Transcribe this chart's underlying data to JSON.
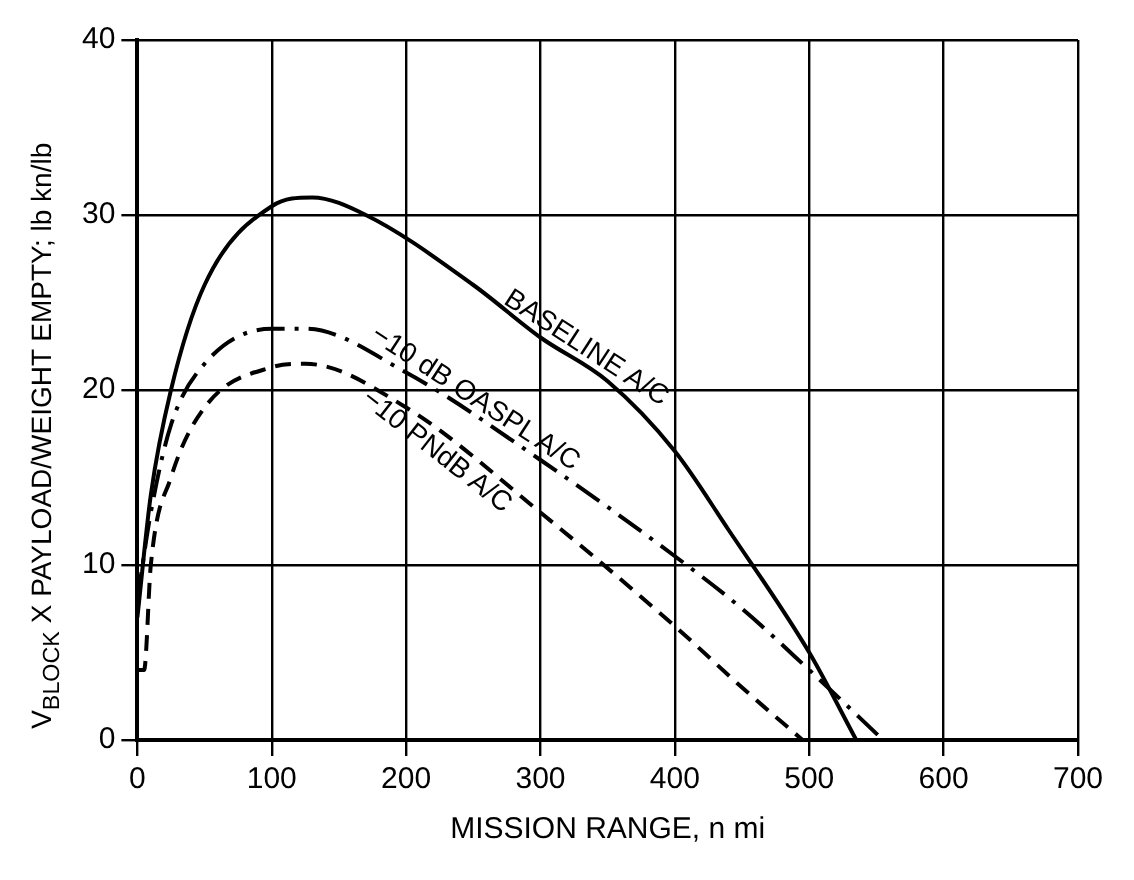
{
  "chart_data": {
    "type": "line",
    "xlabel": "MISSION RANGE, n mi",
    "ylabel": "V$_{BLOCK}$ X PAYLOAD/WEIGHT EMPTY; lb kn/lb",
    "xlim": [
      0,
      700
    ],
    "xticks": [
      0,
      100,
      200,
      300,
      400,
      500,
      600,
      700
    ],
    "ylim": [
      0,
      40
    ],
    "yticks": [
      0,
      10,
      20,
      30,
      40
    ],
    "grid": true,
    "marker": "none",
    "series": [
      {
        "name": "BASELINE A/C",
        "color": "#000000",
        "line_style": "solid",
        "x": [
          0,
          10,
          25,
          50,
          100,
          130,
          170,
          250,
          300,
          350,
          400,
          440,
          500,
          535
        ],
        "values": [
          7,
          14,
          20,
          26,
          30.5,
          31,
          30,
          26,
          23,
          20.5,
          16.5,
          12,
          5,
          0
        ]
      },
      {
        "name": "−10 dB OASPL A/C",
        "color": "#000000",
        "line_style": "dashed",
        "x": [
          0,
          10,
          25,
          50,
          100,
          125,
          200,
          300,
          400,
          450,
          500,
          555
        ],
        "values": [
          8,
          13,
          18,
          21.5,
          23.5,
          23.5,
          21,
          16,
          10.5,
          7.5,
          4,
          0
        ]
      },
      {
        "name": "−10 PNdB A/C",
        "color": "#000000",
        "line_style": "dotted",
        "x": [
          0,
          5,
          10,
          25,
          50,
          100,
          125,
          200,
          300,
          400,
          450,
          495
        ],
        "values": [
          4,
          4,
          10,
          15,
          19,
          21.3,
          21.5,
          19,
          13,
          6.5,
          3,
          0
        ]
      }
    ]
  }
}
